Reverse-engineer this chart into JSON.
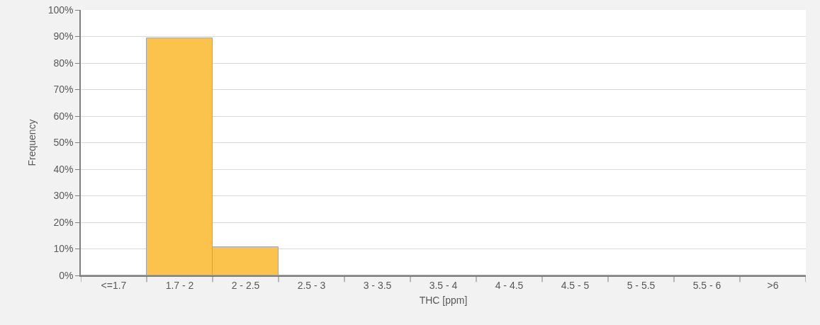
{
  "chart_data": {
    "type": "bar",
    "xlabel": "THC [ppm]",
    "ylabel": "Frequency",
    "categories": [
      "<=1.7",
      "1.7 - 2",
      "2 - 2.5",
      "2.5 - 3",
      "3 - 3.5",
      "3.5 - 4",
      "4 - 4.5",
      "4.5 - 5",
      "5 - 5.5",
      "5.5 - 6",
      ">6"
    ],
    "values": [
      0,
      89.4,
      10.6,
      0,
      0,
      0,
      0,
      0,
      0,
      0,
      0
    ],
    "color": "#fbc24c",
    "ylim": [
      0,
      100
    ],
    "yticks": [
      {
        "value": 0,
        "label": "0%"
      },
      {
        "value": 10,
        "label": "10%"
      },
      {
        "value": 20,
        "label": "20%"
      },
      {
        "value": 30,
        "label": "30%"
      },
      {
        "value": 40,
        "label": "40%"
      },
      {
        "value": 50,
        "label": "50%"
      },
      {
        "value": 60,
        "label": "60%"
      },
      {
        "value": 70,
        "label": "70%"
      },
      {
        "value": 80,
        "label": "80%"
      },
      {
        "value": 90,
        "label": "90%"
      },
      {
        "value": 100,
        "label": "100%"
      }
    ],
    "grid": "y"
  }
}
